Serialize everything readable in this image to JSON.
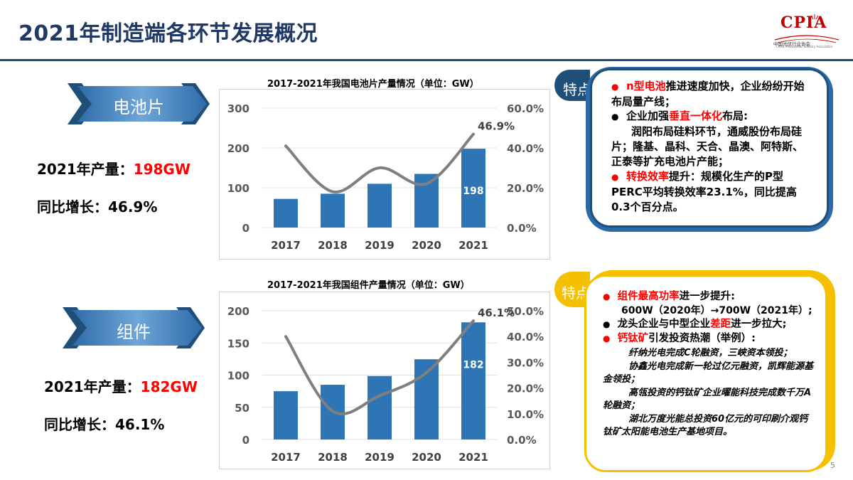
{
  "title": "2021年制造端各环节发展概况",
  "logo": {
    "name": "CPIA",
    "subtitle": "中国光伏行业协会",
    "subtitle_en": "China Photovoltaic Industry Association"
  },
  "page_number": "5",
  "colors": {
    "bar": "#2e75b6",
    "line": "#7f7f7f",
    "accent": "#ff0000",
    "navy": "#1f4e79",
    "gold": "#f5c000"
  },
  "sections": [
    {
      "ribbon": "电池片",
      "production_label": "2021年产量：",
      "production_value": "198GW",
      "growth_text": "同比增长：46.9%",
      "tag": "特点",
      "bullets": [
        {
          "red": "n型电池",
          "rest": "推进速度加快，企业纷纷开始布局量产线；",
          "dot": "red"
        },
        {
          "pre": "企业加强",
          "red": "垂直一体化",
          "rest": "布局:",
          "dot": "black"
        },
        {
          "text": "润阳布局硅料环节，通威股份布局硅片；隆基、晶科、天合、晶澳、阿特斯、正泰等扩充电池片产能；"
        },
        {
          "red": "转换效率",
          "rest": "提升：规模化生产的P型PERC平均转换效率23.1%，同比提高0.3个百分点。",
          "dot": "red"
        }
      ]
    },
    {
      "ribbon": "组件",
      "production_label": "2021年产量：",
      "production_value": "182GW",
      "growth_text": "同比增长：46.1%",
      "tag": "特点",
      "bullets": [
        {
          "red": "组件最高功率",
          "rest": "进一步提升:",
          "dot": "red"
        },
        {
          "text": "600W（2020年）→700W（2021年）;"
        },
        {
          "pre": "龙头企业与中型企业",
          "red": "差距",
          "rest": "进一步拉大;",
          "dot": "black"
        },
        {
          "red": "钙钛矿",
          "rest": "引发投资热潮（举例）:",
          "dot": "red"
        },
        {
          "italic": "纤纳光电完成C轮融资，三峡资本领投；"
        },
        {
          "italic": "协鑫光电完成新一轮过亿元融资，凯辉能源基金领投；"
        },
        {
          "italic": "高瓴投资的钙钛矿企业曜能科技完成数千万A轮融资；"
        },
        {
          "italic": "湖北万度光能总投资60亿元的可印刷介观钙钛矿太阳能电池生产基地项目。"
        }
      ]
    }
  ],
  "chart_data": [
    {
      "type": "bar",
      "title": "2017-2021年我国电池片产量情况（单位：GW）",
      "categories": [
        "2017",
        "2018",
        "2019",
        "2020",
        "2021"
      ],
      "series": [
        {
          "axis": "left",
          "values": [
            72,
            85,
            110,
            134.8,
            198
          ],
          "data_labels": [
            "",
            "",
            "",
            "",
            "198"
          ]
        },
        {
          "type": "line",
          "axis": "right",
          "values": [
            0.41,
            0.18,
            0.3,
            0.22,
            0.469
          ],
          "data_labels": [
            "",
            "",
            "",
            "",
            "46.9%"
          ]
        }
      ],
      "ylim": [
        0,
        300
      ],
      "yticks": [
        "0",
        "100",
        "200",
        "300"
      ],
      "y2lim": [
        0,
        0.6
      ],
      "y2ticks": [
        "0.0%",
        "20.0%",
        "40.0%",
        "60.0%"
      ],
      "grid": true
    },
    {
      "type": "bar",
      "title": "2017-2021年我国组件产量情况（单位：GW）",
      "categories": [
        "2017",
        "2018",
        "2019",
        "2020",
        "2021"
      ],
      "series": [
        {
          "axis": "left",
          "values": [
            75,
            85,
            98.6,
            124.6,
            182
          ],
          "data_labels": [
            "",
            "",
            "",
            "",
            "182"
          ]
        },
        {
          "type": "line",
          "axis": "right",
          "values": [
            0.4,
            0.11,
            0.17,
            0.26,
            0.461
          ],
          "data_labels": [
            "",
            "",
            "",
            "",
            "46.1%"
          ]
        }
      ],
      "ylim": [
        0,
        200
      ],
      "yticks": [
        "0",
        "50",
        "100",
        "150",
        "200"
      ],
      "y2lim": [
        0,
        0.5
      ],
      "y2ticks": [
        "0.0%",
        "10.0%",
        "20.0%",
        "30.0%",
        "40.0%",
        "50.0%"
      ],
      "grid": true
    }
  ]
}
